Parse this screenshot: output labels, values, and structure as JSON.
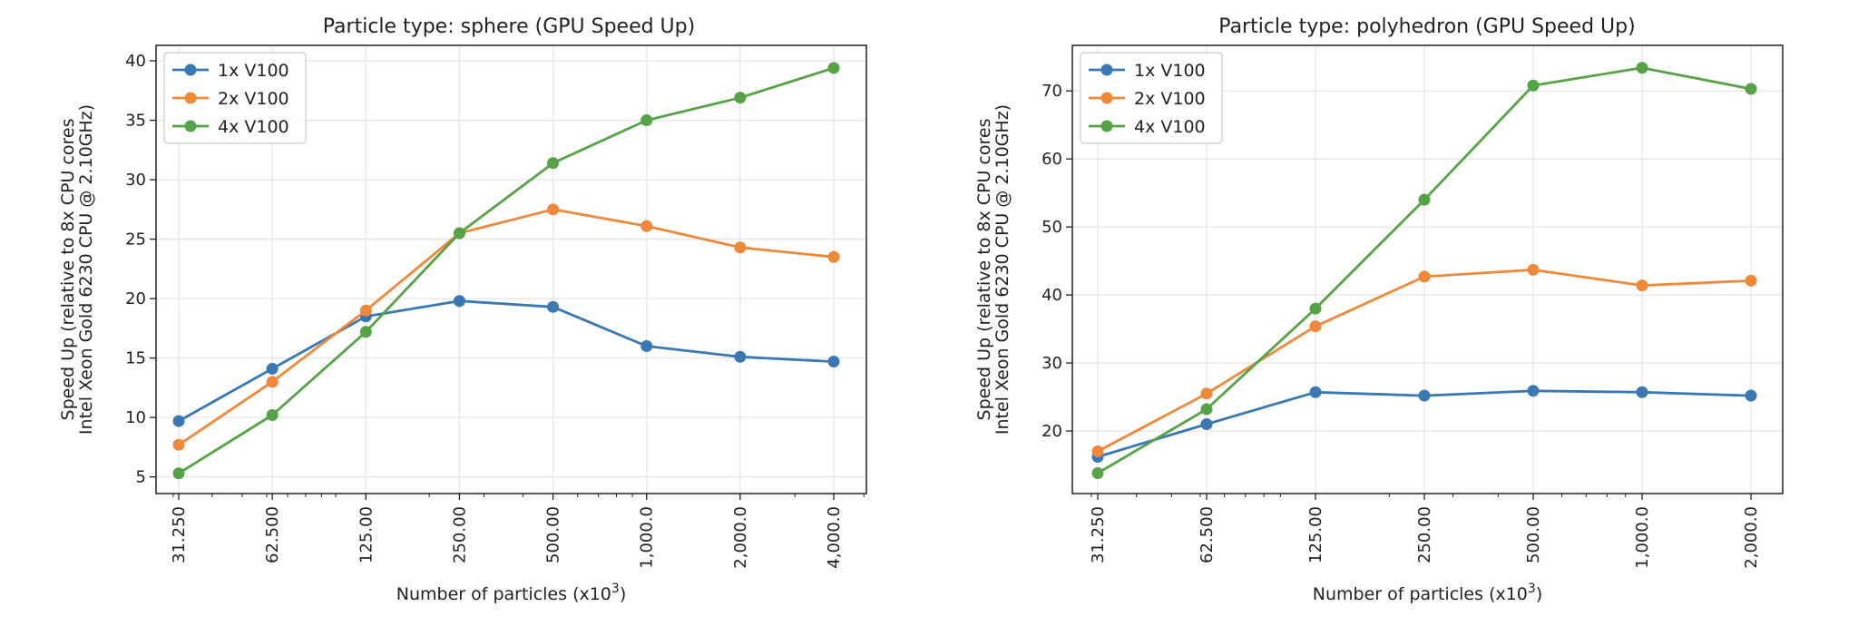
{
  "chart_data": [
    {
      "type": "line",
      "title": "Particle type: sphere (GPU Speed Up)",
      "xlabel": "Number of particles (x10",
      "xlabel_sup": "3",
      "xlabel_end": ")",
      "ylabel": [
        "Speed Up (relative to 8x CPU cores",
        "Intel Xeon Gold 6230 CPU @ 2.10GHz)"
      ],
      "x_scale": "log",
      "x": [
        31.25,
        62.5,
        125,
        250,
        500,
        1000,
        2000,
        4000
      ],
      "x_tick_labels": [
        "31.250",
        "62.500",
        "125.00",
        "250.00",
        "500.00",
        "1,000.0",
        "2,000.0",
        "4,000.0"
      ],
      "ylim": [
        3.6,
        41.3
      ],
      "y_ticks": [
        5,
        10,
        15,
        20,
        25,
        30,
        35,
        40
      ],
      "grid": true,
      "legend_position": "upper-left",
      "series": [
        {
          "name": "1x V100",
          "color": "#3a78b4",
          "values": [
            9.7,
            14.1,
            18.5,
            19.8,
            19.3,
            16.0,
            15.1,
            14.7
          ]
        },
        {
          "name": "2x V100",
          "color": "#f0883a",
          "values": [
            7.7,
            13.0,
            19.0,
            25.5,
            27.5,
            26.1,
            24.3,
            23.5
          ]
        },
        {
          "name": "4x V100",
          "color": "#55a346",
          "values": [
            5.3,
            10.2,
            17.2,
            25.5,
            31.4,
            35.0,
            36.9,
            39.4
          ]
        }
      ]
    },
    {
      "type": "line",
      "title": "Particle type: polyhedron (GPU Speed Up)",
      "xlabel": "Number of particles (x10",
      "xlabel_sup": "3",
      "xlabel_end": ")",
      "ylabel": [
        "Speed Up (relative to 8x CPU cores",
        "Intel Xeon Gold 6230 CPU @ 2.10GHz)"
      ],
      "x_scale": "log",
      "x": [
        31.25,
        62.5,
        125,
        250,
        500,
        1000,
        2000
      ],
      "x_tick_labels": [
        "31.250",
        "62.500",
        "125.00",
        "250.00",
        "500.00",
        "1,000.0",
        "2,000.0"
      ],
      "ylim": [
        10.8,
        76.7
      ],
      "y_ticks": [
        20,
        30,
        40,
        50,
        60,
        70
      ],
      "grid": true,
      "legend_position": "upper-left",
      "series": [
        {
          "name": "1x V100",
          "color": "#3a78b4",
          "values": [
            16.2,
            21.0,
            25.7,
            25.2,
            25.9,
            25.7,
            25.2
          ]
        },
        {
          "name": "2x V100",
          "color": "#f0883a",
          "values": [
            17.0,
            25.5,
            35.4,
            42.7,
            43.7,
            41.4,
            42.1
          ]
        },
        {
          "name": "4x V100",
          "color": "#55a346",
          "values": [
            13.8,
            23.2,
            38.0,
            54.0,
            70.8,
            73.4,
            70.3
          ]
        }
      ]
    }
  ]
}
